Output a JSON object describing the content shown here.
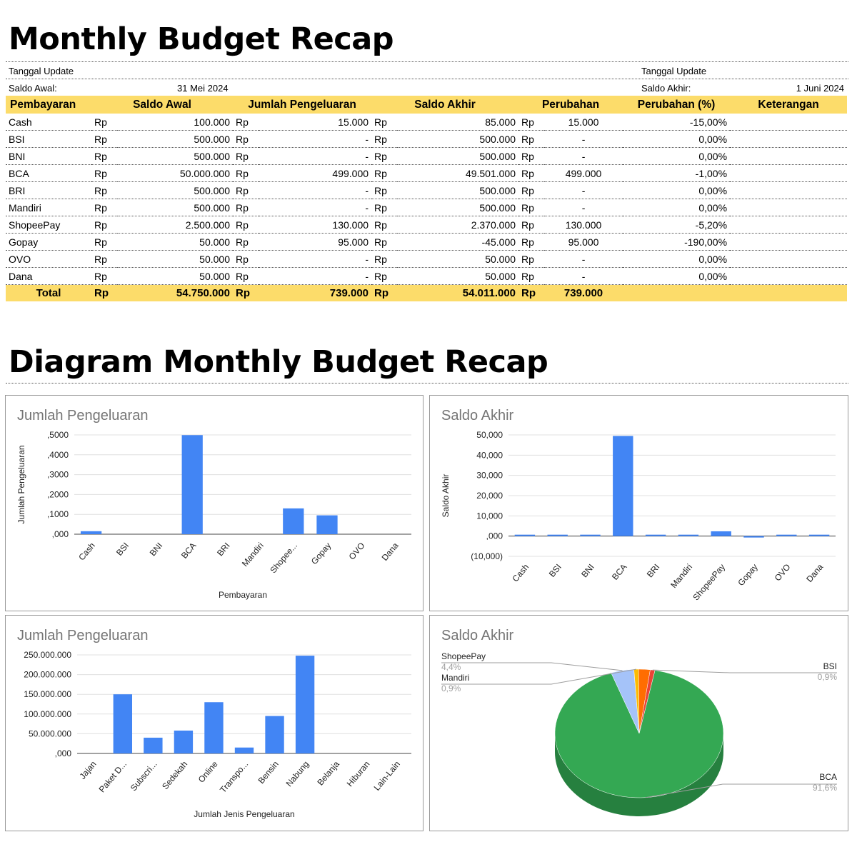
{
  "page_title": "Monthly Budget Recap",
  "meta": {
    "left_update_label": "Tanggal Update",
    "saldo_awal_label": "Saldo Awal:",
    "saldo_awal_date": "31 Mei 2024",
    "right_update_label": "Tanggal Update",
    "saldo_akhir_label": "Saldo Akhir:",
    "saldo_akhir_date": "1 Juni 2024"
  },
  "table": {
    "headers": [
      "Pembayaran",
      "Saldo Awal",
      "Jumlah Pengeluaran",
      "Saldo Akhir",
      "Perubahan",
      "Perubahan (%)",
      "Keterangan"
    ],
    "currency": "Rp",
    "rows": [
      {
        "name": "Cash",
        "awal": "100.000",
        "pengeluaran": "15.000",
        "akhir": "85.000",
        "perubahan": "15.000",
        "persen": "-15,00%"
      },
      {
        "name": "BSI",
        "awal": "500.000",
        "pengeluaran": "-",
        "akhir": "500.000",
        "perubahan": "-",
        "persen": "0,00%"
      },
      {
        "name": "BNI",
        "awal": "500.000",
        "pengeluaran": "-",
        "akhir": "500.000",
        "perubahan": "-",
        "persen": "0,00%"
      },
      {
        "name": "BCA",
        "awal": "50.000.000",
        "pengeluaran": "499.000",
        "akhir": "49.501.000",
        "perubahan": "499.000",
        "persen": "-1,00%"
      },
      {
        "name": "BRI",
        "awal": "500.000",
        "pengeluaran": "-",
        "akhir": "500.000",
        "perubahan": "-",
        "persen": "0,00%"
      },
      {
        "name": "Mandiri",
        "awal": "500.000",
        "pengeluaran": "-",
        "akhir": "500.000",
        "perubahan": "-",
        "persen": "0,00%"
      },
      {
        "name": "ShopeePay",
        "awal": "2.500.000",
        "pengeluaran": "130.000",
        "akhir": "2.370.000",
        "perubahan": "130.000",
        "persen": "-5,20%"
      },
      {
        "name": "Gopay",
        "awal": "50.000",
        "pengeluaran": "95.000",
        "akhir": "-45.000",
        "perubahan": "95.000",
        "persen": "-190,00%"
      },
      {
        "name": "OVO",
        "awal": "50.000",
        "pengeluaran": "-",
        "akhir": "50.000",
        "perubahan": "-",
        "persen": "0,00%"
      },
      {
        "name": "Dana",
        "awal": "50.000",
        "pengeluaran": "-",
        "akhir": "50.000",
        "perubahan": "-",
        "persen": "0,00%"
      }
    ],
    "total": {
      "label": "Total",
      "awal": "54.750.000",
      "pengeluaran": "739.000",
      "akhir": "54.011.000",
      "perubahan": "739.000"
    }
  },
  "diagram_title": "Diagram Monthly Budget Recap",
  "colors": {
    "bar": "#4285f4",
    "header_bg": "#fcdc6a",
    "pie_bca": "#34a853",
    "pie_bca_side": "#26803f",
    "pie_shopeepay": "#a5c3f9",
    "pie_mandiri": "#fbbc04",
    "pie_bsi": "#ea4335",
    "pie_other": "#ff6d01"
  },
  "chart_data": [
    {
      "type": "bar",
      "title": "Jumlah Pengeluaran",
      "xlabel": "Pembayaran",
      "ylabel": "Jumlah Pengeluaran",
      "categories": [
        "Cash",
        "BSI",
        "BNI",
        "BCA",
        "BRI",
        "Mandiri",
        "Shopee...",
        "Gopay",
        "OVO",
        "Dana"
      ],
      "values": [
        15000,
        0,
        0,
        499000,
        0,
        0,
        130000,
        95000,
        0,
        0
      ],
      "ylim": [
        0,
        500000
      ],
      "yticks": [
        0,
        100000,
        200000,
        300000,
        400000,
        500000
      ],
      "ytick_labels": [
        ",000",
        ",1000",
        ",2000",
        ",3000",
        ",4000",
        ",5000"
      ]
    },
    {
      "type": "bar",
      "title": "Saldo Akhir",
      "xlabel": "",
      "ylabel": "Saldo Akhir",
      "categories": [
        "Cash",
        "BSI",
        "BNI",
        "BCA",
        "BRI",
        "Mandiri",
        "ShopeePay",
        "Gopay",
        "OVO",
        "Dana"
      ],
      "values": [
        85000,
        500000,
        500000,
        49501000,
        500000,
        500000,
        2370000,
        -45000,
        50000,
        50000
      ],
      "ylim": [
        -10000000,
        50000000
      ],
      "yticks": [
        -10000000,
        0,
        10000000,
        20000000,
        30000000,
        40000000,
        50000000
      ],
      "ytick_labels": [
        "(10,000)",
        ",000",
        "10,000",
        "20,000",
        "30,000",
        "40,000",
        "50,000"
      ]
    },
    {
      "type": "bar",
      "title": "Jumlah Pengeluaran",
      "xlabel": "Jumlah Jenis Pengeluaran",
      "ylabel": "",
      "categories": [
        "Jajan",
        "Paket D...",
        "Subscri...",
        "Sedekah",
        "Online",
        "Transpo...",
        "Bensin",
        "Nabung",
        "Belanja",
        "Hiburan",
        "Lain-Lain"
      ],
      "values": [
        0,
        150000000,
        40000000,
        58000000,
        130000000,
        15000000,
        95000000,
        248000000,
        0,
        0,
        0
      ],
      "ylim": [
        0,
        250000000
      ],
      "yticks": [
        0,
        50000000,
        100000000,
        150000000,
        200000000,
        250000000
      ],
      "ytick_labels": [
        ",000",
        "50.000.000",
        "100.000.000",
        "150.000.000",
        "200.000.000",
        "250.000.000"
      ]
    },
    {
      "type": "pie",
      "title": "Saldo Akhir",
      "slices": [
        {
          "label": "BCA",
          "value": 91.6,
          "pct_label": "91,6%"
        },
        {
          "label": "ShopeePay",
          "value": 4.4,
          "pct_label": "4,4%"
        },
        {
          "label": "Mandiri",
          "value": 0.9,
          "pct_label": "0,9%"
        },
        {
          "label": "BSI",
          "value": 0.9,
          "pct_label": "0,9%"
        },
        {
          "label": "",
          "value": 2.2,
          "pct_label": ""
        }
      ]
    }
  ]
}
